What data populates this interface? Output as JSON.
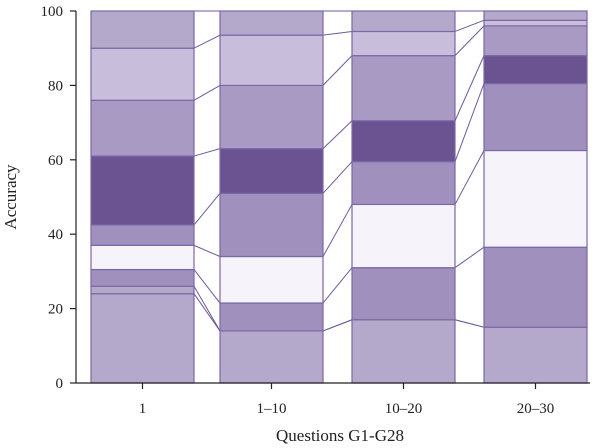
{
  "chart_data": {
    "type": "bar",
    "stacked": true,
    "title": "",
    "xlabel": "Questions G1-G28",
    "ylabel": "Accuracy",
    "ylim": [
      0,
      100
    ],
    "yticks": [
      0,
      20,
      40,
      60,
      80,
      100
    ],
    "categories": [
      "1",
      "1–10",
      "10–20",
      "20–30"
    ],
    "legend": "none",
    "grid": false,
    "series": [
      {
        "color": "#b4a9cb",
        "values": [
          24,
          14,
          17,
          15
        ]
      },
      {
        "color": "#b4a9cb",
        "values": [
          2,
          0,
          0,
          0
        ]
      },
      {
        "color": "#9f90bd",
        "values": [
          4.5,
          7.5,
          14,
          21.5
        ]
      },
      {
        "color": "#f6f4fa",
        "values": [
          6.5,
          12.5,
          17,
          26
        ]
      },
      {
        "color": "#9f90bd",
        "values": [
          5.5,
          17,
          11.5,
          18
        ]
      },
      {
        "color": "#6b5290",
        "values": [
          18.5,
          12,
          11,
          7.5
        ]
      },
      {
        "color": "#a99ac4",
        "values": [
          15,
          17,
          17.5,
          8
        ]
      },
      {
        "color": "#c8bedc",
        "values": [
          14,
          13.5,
          6.5,
          1.5
        ]
      },
      {
        "color": "#b4a9cb",
        "values": [
          10,
          6.5,
          5.5,
          2.5
        ]
      }
    ]
  }
}
